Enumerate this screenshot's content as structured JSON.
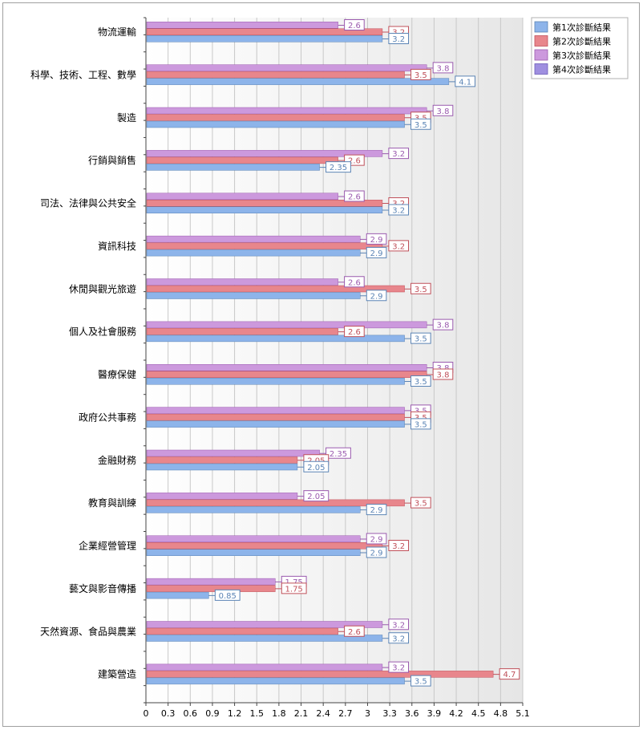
{
  "chart_data": {
    "type": "bar",
    "orientation": "horizontal",
    "categories": [
      "物流運輸",
      "科學、技術、工程、數學",
      "製造",
      "行銷與銷售",
      "司法、法律與公共安全",
      "資訊科技",
      "休閒與觀光旅遊",
      "個人及社會服務",
      "醫療保健",
      "政府公共事務",
      "金融財務",
      "教育與訓練",
      "企業經營管理",
      "藝文與影音傳播",
      "天然資源、食品與農業",
      "建築營造"
    ],
    "series": [
      {
        "name": "第1次診斷結果",
        "color": "#8db4ea",
        "label_color": "#5b84b5",
        "values": [
          3.2,
          4.1,
          3.5,
          2.35,
          3.2,
          2.9,
          2.9,
          3.5,
          3.5,
          3.5,
          2.05,
          2.9,
          2.9,
          0.85,
          3.2,
          3.5
        ]
      },
      {
        "name": "第2次診斷結果",
        "color": "#e8868c",
        "label_color": "#c0505a",
        "values": [
          3.2,
          3.5,
          3.5,
          2.6,
          3.2,
          3.2,
          3.5,
          2.6,
          3.8,
          3.5,
          2.05,
          3.5,
          3.2,
          1.75,
          2.6,
          4.7
        ]
      },
      {
        "name": "第3次診斷結果",
        "color": "#cc99dd",
        "label_color": "#9a5aae",
        "values": [
          2.6,
          3.8,
          3.8,
          3.2,
          2.6,
          2.9,
          2.6,
          3.8,
          3.8,
          3.5,
          2.35,
          2.05,
          2.9,
          1.75,
          3.2,
          3.2
        ]
      },
      {
        "name": "第4次診斷結果",
        "color": "#9f8fe0",
        "label_color": "#6b5cb8",
        "values": [
          null,
          null,
          null,
          null,
          null,
          null,
          null,
          null,
          null,
          null,
          null,
          null,
          null,
          null,
          null,
          null
        ]
      }
    ],
    "xlim": [
      0,
      5.1
    ],
    "xticks": [
      "0",
      "0.3",
      "0.6",
      "0.9",
      "1.2",
      "1.5",
      "1.8",
      "2.1",
      "2.4",
      "2.7",
      "3",
      "3.3",
      "3.6",
      "3.9",
      "4.2",
      "4.5",
      "4.8",
      "5.1"
    ],
    "grid": true,
    "legend_position": "top-right",
    "title": "",
    "xlabel": "",
    "ylabel": ""
  }
}
